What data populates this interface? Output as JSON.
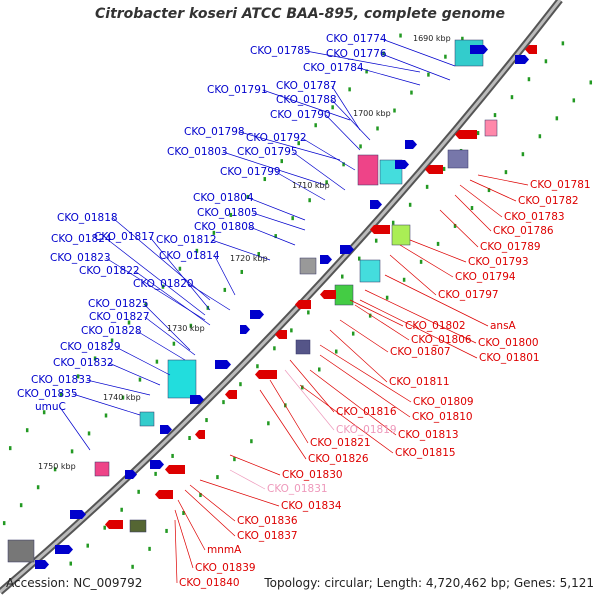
{
  "title": "Citrobacter koseri ATCC BAA-895, complete genome",
  "footer": {
    "accession": "Accession: NC_009792",
    "summary": "Topology: circular; Length: 4,720,462 bp; Genes: 5,121"
  },
  "colors": {
    "left_strand": "#0000cc",
    "right_strand": "#dd0000",
    "pseudo": "#ee99bb",
    "backbone": "#888888",
    "dots": "#229922"
  },
  "ticks": [
    "1690 kbp",
    "1700 kbp",
    "1710 kbp",
    "1720 kbp",
    "1730 kbp",
    "1740 kbp",
    "1750 kbp"
  ],
  "left_labels": [
    "CKO_01774",
    "CKO_01785",
    "CKO_01776",
    "CKO_01784",
    "CKO_01791",
    "CKO_01787",
    "CKO_01788",
    "CKO_01790",
    "CKO_01798",
    "CKO_01792",
    "CKO_01803",
    "CKO_01795",
    "CKO_01799",
    "CKO_01804",
    "CKO_01805",
    "CKO_01818",
    "CKO_01808",
    "CKO_01817",
    "CKO_01824",
    "CKO_01812",
    "CKO_01823",
    "CKO_01814",
    "CKO_01822",
    "CKO_01820",
    "CKO_01825",
    "CKO_01827",
    "CKO_01828",
    "CKO_01829",
    "CKO_01832",
    "CKO_01833",
    "CKO_01835",
    "umuC"
  ],
  "right_labels": [
    "CKO_01781",
    "CKO_01782",
    "CKO_01783",
    "CKO_01786",
    "CKO_01789",
    "CKO_01793",
    "CKO_01794",
    "CKO_01797",
    "ansA",
    "CKO_01802",
    "CKO_01806",
    "CKO_01800",
    "CKO_01807",
    "CKO_01801",
    "CKO_01811",
    "CKO_01809",
    "CKO_01816",
    "CKO_01810",
    "CKO_01819",
    "CKO_01813",
    "CKO_01821",
    "CKO_01826",
    "CKO_01815",
    "CKO_01830",
    "CKO_01831",
    "CKO_01834",
    "CKO_01836",
    "CKO_01837",
    "mnmA",
    "CKO_01839",
    "CKO_01840"
  ]
}
